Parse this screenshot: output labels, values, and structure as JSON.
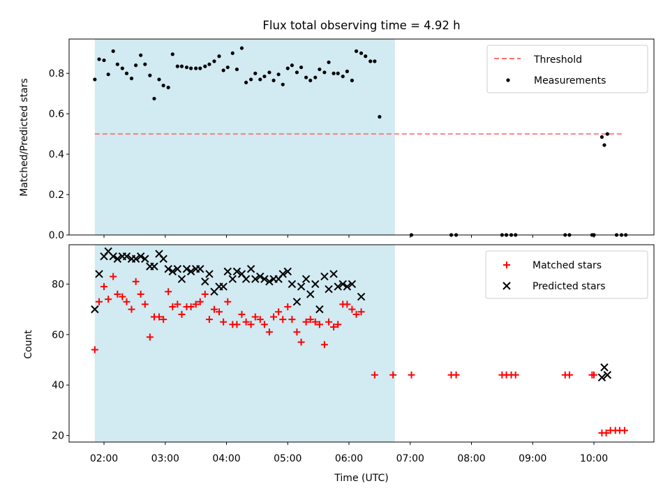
{
  "chart_data": [
    {
      "type": "scatter",
      "title": "Flux total observing time = 4.92 h",
      "xlabel": "",
      "ylabel": "Matched/Predicted stars",
      "xlim": [
        1.43,
        10.98
      ],
      "ylim": [
        0,
        0.97
      ],
      "xticks": [
        {
          "v": 2,
          "label": "02:00"
        },
        {
          "v": 3,
          "label": "03:00"
        },
        {
          "v": 4,
          "label": "04:00"
        },
        {
          "v": 5,
          "label": "05:00"
        },
        {
          "v": 6,
          "label": "06:00"
        },
        {
          "v": 7,
          "label": "07:00"
        },
        {
          "v": 8,
          "label": "08:00"
        },
        {
          "v": 9,
          "label": "09:00"
        },
        {
          "v": 10,
          "label": "10:00"
        }
      ],
      "yticks": [
        {
          "v": 0,
          "label": "0.0"
        },
        {
          "v": 0.2,
          "label": "0.2"
        },
        {
          "v": 0.4,
          "label": "0.4"
        },
        {
          "v": 0.6,
          "label": "0.6"
        },
        {
          "v": 0.8,
          "label": "0.8"
        }
      ],
      "shaded_span": {
        "from": 1.85,
        "to": 6.75,
        "color": "#add8e6"
      },
      "threshold": {
        "name": "Threshold",
        "value": 0.5,
        "from": 1.85,
        "to": 10.5,
        "color": "#ff6e6e"
      },
      "legend": {
        "position": "top-right",
        "entries": [
          "Threshold",
          "Measurements"
        ]
      },
      "series": [
        {
          "name": "Measurements",
          "color": "#000000",
          "points": [
            [
              1.85,
              0.77
            ],
            [
              1.92,
              0.87
            ],
            [
              2.0,
              0.865
            ],
            [
              2.07,
              0.795
            ],
            [
              2.15,
              0.91
            ],
            [
              2.22,
              0.845
            ],
            [
              2.3,
              0.825
            ],
            [
              2.37,
              0.8
            ],
            [
              2.45,
              0.775
            ],
            [
              2.52,
              0.84
            ],
            [
              2.6,
              0.89
            ],
            [
              2.67,
              0.845
            ],
            [
              2.75,
              0.79
            ],
            [
              2.82,
              0.675
            ],
            [
              2.9,
              0.77
            ],
            [
              2.97,
              0.74
            ],
            [
              3.05,
              0.73
            ],
            [
              3.12,
              0.895
            ],
            [
              3.2,
              0.835
            ],
            [
              3.27,
              0.835
            ],
            [
              3.35,
              0.83
            ],
            [
              3.42,
              0.825
            ],
            [
              3.5,
              0.825
            ],
            [
              3.57,
              0.825
            ],
            [
              3.65,
              0.835
            ],
            [
              3.72,
              0.845
            ],
            [
              3.8,
              0.86
            ],
            [
              3.88,
              0.885
            ],
            [
              3.95,
              0.815
            ],
            [
              4.02,
              0.83
            ],
            [
              4.1,
              0.9
            ],
            [
              4.17,
              0.82
            ],
            [
              4.25,
              0.925
            ],
            [
              4.32,
              0.755
            ],
            [
              4.4,
              0.77
            ],
            [
              4.47,
              0.8
            ],
            [
              4.55,
              0.77
            ],
            [
              4.62,
              0.785
            ],
            [
              4.7,
              0.805
            ],
            [
              4.77,
              0.765
            ],
            [
              4.85,
              0.795
            ],
            [
              4.92,
              0.745
            ],
            [
              5.0,
              0.825
            ],
            [
              5.07,
              0.84
            ],
            [
              5.15,
              0.805
            ],
            [
              5.22,
              0.83
            ],
            [
              5.3,
              0.78
            ],
            [
              5.37,
              0.765
            ],
            [
              5.45,
              0.78
            ],
            [
              5.52,
              0.82
            ],
            [
              5.6,
              0.805
            ],
            [
              5.67,
              0.855
            ],
            [
              5.75,
              0.8
            ],
            [
              5.82,
              0.8
            ],
            [
              5.9,
              0.785
            ],
            [
              5.97,
              0.81
            ],
            [
              6.05,
              0.765
            ],
            [
              6.12,
              0.91
            ],
            [
              6.2,
              0.9
            ],
            [
              6.27,
              0.885
            ],
            [
              6.35,
              0.86
            ],
            [
              6.42,
              0.86
            ],
            [
              6.5,
              0.585
            ],
            [
              7.02,
              0.0
            ],
            [
              7.67,
              0.0
            ],
            [
              7.75,
              0.0
            ],
            [
              8.5,
              0.0
            ],
            [
              8.57,
              0.0
            ],
            [
              8.65,
              0.0
            ],
            [
              8.72,
              0.0
            ],
            [
              9.53,
              0.0
            ],
            [
              9.6,
              0.0
            ],
            [
              9.97,
              0.0
            ],
            [
              10.0,
              0.0
            ],
            [
              10.13,
              0.485
            ],
            [
              10.17,
              0.445
            ],
            [
              10.22,
              0.5
            ],
            [
              10.37,
              0.0
            ],
            [
              10.45,
              0.0
            ],
            [
              10.52,
              0.0
            ]
          ]
        }
      ]
    },
    {
      "type": "scatter",
      "title": "",
      "xlabel": "Time (UTC)",
      "ylabel": "Count",
      "xlim": [
        1.43,
        10.98
      ],
      "ylim": [
        17.4,
        95.6
      ],
      "xticks": [
        {
          "v": 2,
          "label": "02:00"
        },
        {
          "v": 3,
          "label": "03:00"
        },
        {
          "v": 4,
          "label": "04:00"
        },
        {
          "v": 5,
          "label": "05:00"
        },
        {
          "v": 6,
          "label": "06:00"
        },
        {
          "v": 7,
          "label": "07:00"
        },
        {
          "v": 8,
          "label": "08:00"
        },
        {
          "v": 9,
          "label": "09:00"
        },
        {
          "v": 10,
          "label": "10:00"
        }
      ],
      "yticks": [
        {
          "v": 20,
          "label": "20"
        },
        {
          "v": 40,
          "label": "40"
        },
        {
          "v": 60,
          "label": "60"
        },
        {
          "v": 80,
          "label": "80"
        }
      ],
      "shaded_span": {
        "from": 1.85,
        "to": 6.75,
        "color": "#add8e6"
      },
      "legend": {
        "position": "top-right",
        "entries": [
          "Matched stars",
          "Predicted stars"
        ]
      },
      "series": [
        {
          "name": "Matched stars",
          "marker": "+",
          "color": "#ff0000",
          "points": [
            [
              1.85,
              54
            ],
            [
              1.92,
              73
            ],
            [
              2.0,
              79
            ],
            [
              2.07,
              74
            ],
            [
              2.15,
              83
            ],
            [
              2.22,
              76
            ],
            [
              2.3,
              75
            ],
            [
              2.37,
              73
            ],
            [
              2.45,
              70
            ],
            [
              2.52,
              81
            ],
            [
              2.6,
              76
            ],
            [
              2.67,
              72
            ],
            [
              2.75,
              59
            ],
            [
              2.82,
              67
            ],
            [
              2.9,
              67
            ],
            [
              2.97,
              66
            ],
            [
              3.05,
              77
            ],
            [
              3.12,
              71
            ],
            [
              3.2,
              72
            ],
            [
              3.27,
              68
            ],
            [
              3.35,
              71
            ],
            [
              3.42,
              71
            ],
            [
              3.5,
              72
            ],
            [
              3.57,
              73
            ],
            [
              3.65,
              76
            ],
            [
              3.72,
              66
            ],
            [
              3.8,
              70
            ],
            [
              3.88,
              69
            ],
            [
              3.95,
              65
            ],
            [
              4.02,
              73
            ],
            [
              4.1,
              64
            ],
            [
              4.17,
              64
            ],
            [
              4.25,
              68
            ],
            [
              4.32,
              65
            ],
            [
              4.4,
              64
            ],
            [
              4.47,
              67
            ],
            [
              4.55,
              66
            ],
            [
              4.62,
              64
            ],
            [
              4.7,
              61
            ],
            [
              4.77,
              67
            ],
            [
              4.85,
              69
            ],
            [
              4.92,
              66
            ],
            [
              5.0,
              71
            ],
            [
              5.07,
              66
            ],
            [
              5.15,
              61
            ],
            [
              5.22,
              57
            ],
            [
              5.3,
              65
            ],
            [
              5.37,
              66
            ],
            [
              5.45,
              65
            ],
            [
              5.52,
              64
            ],
            [
              5.6,
              56
            ],
            [
              5.67,
              65
            ],
            [
              5.75,
              63
            ],
            [
              5.82,
              64
            ],
            [
              5.9,
              72
            ],
            [
              5.97,
              72
            ],
            [
              6.05,
              70
            ],
            [
              6.12,
              68
            ],
            [
              6.2,
              69
            ],
            [
              6.42,
              44
            ],
            [
              6.72,
              44
            ],
            [
              7.02,
              44
            ],
            [
              7.67,
              44
            ],
            [
              7.75,
              44
            ],
            [
              8.5,
              44
            ],
            [
              8.57,
              44
            ],
            [
              8.65,
              44
            ],
            [
              8.72,
              44
            ],
            [
              9.53,
              44
            ],
            [
              9.6,
              44
            ],
            [
              9.97,
              44
            ],
            [
              10.0,
              44
            ],
            [
              10.13,
              21
            ],
            [
              10.2,
              21
            ],
            [
              10.27,
              22
            ],
            [
              10.35,
              22
            ],
            [
              10.42,
              22
            ],
            [
              10.5,
              22
            ]
          ]
        },
        {
          "name": "Predicted stars",
          "marker": "x",
          "color": "#000000",
          "points": [
            [
              1.85,
              70
            ],
            [
              1.92,
              84
            ],
            [
              2.0,
              91
            ],
            [
              2.07,
              93
            ],
            [
              2.15,
              91
            ],
            [
              2.22,
              90
            ],
            [
              2.3,
              91
            ],
            [
              2.37,
              91
            ],
            [
              2.45,
              90
            ],
            [
              2.52,
              90
            ],
            [
              2.6,
              91
            ],
            [
              2.67,
              90
            ],
            [
              2.75,
              87
            ],
            [
              2.82,
              87
            ],
            [
              2.9,
              92
            ],
            [
              2.97,
              90
            ],
            [
              3.05,
              86
            ],
            [
              3.12,
              85
            ],
            [
              3.2,
              86
            ],
            [
              3.27,
              82
            ],
            [
              3.35,
              86
            ],
            [
              3.42,
              85
            ],
            [
              3.5,
              86
            ],
            [
              3.57,
              86
            ],
            [
              3.65,
              81
            ],
            [
              3.72,
              84
            ],
            [
              3.8,
              77
            ],
            [
              3.88,
              79
            ],
            [
              3.95,
              79
            ],
            [
              4.02,
              85
            ],
            [
              4.1,
              82
            ],
            [
              4.17,
              85
            ],
            [
              4.25,
              84
            ],
            [
              4.32,
              82
            ],
            [
              4.4,
              86
            ],
            [
              4.47,
              82
            ],
            [
              4.55,
              83
            ],
            [
              4.62,
              82
            ],
            [
              4.7,
              81
            ],
            [
              4.77,
              82
            ],
            [
              4.85,
              82
            ],
            [
              4.92,
              84
            ],
            [
              5.0,
              85
            ],
            [
              5.07,
              80
            ],
            [
              5.15,
              73
            ],
            [
              5.22,
              79
            ],
            [
              5.3,
              82
            ],
            [
              5.37,
              76
            ],
            [
              5.45,
              80
            ],
            [
              5.52,
              70
            ],
            [
              5.6,
              83
            ],
            [
              5.67,
              78
            ],
            [
              5.75,
              84
            ],
            [
              5.82,
              79
            ],
            [
              5.9,
              80
            ],
            [
              5.97,
              79
            ],
            [
              6.05,
              80
            ],
            [
              6.2,
              75
            ],
            [
              10.17,
              47
            ],
            [
              10.13,
              43
            ],
            [
              10.22,
              44
            ]
          ]
        }
      ]
    }
  ]
}
